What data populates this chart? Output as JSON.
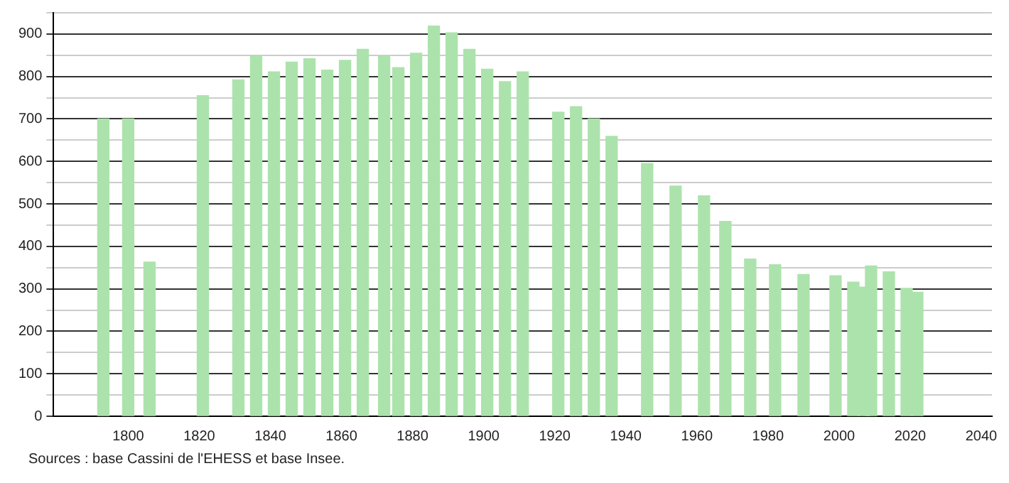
{
  "chart_data": {
    "type": "bar",
    "color": "#ace3ac",
    "x": [
      1793,
      1800,
      1806,
      1821,
      1831,
      1836,
      1841,
      1846,
      1851,
      1856,
      1861,
      1866,
      1872,
      1876,
      1881,
      1886,
      1891,
      1896,
      1901,
      1906,
      1911,
      1921,
      1926,
      1931,
      1936,
      1946,
      1954,
      1962,
      1968,
      1975,
      1982,
      1990,
      1999,
      2004,
      2007,
      2009,
      2014,
      2019,
      2022
    ],
    "values": [
      700,
      700,
      363,
      755,
      792,
      850,
      811,
      834,
      842,
      815,
      838,
      864,
      848,
      821,
      855,
      919,
      903,
      864,
      817,
      788,
      811,
      716,
      729,
      700,
      659,
      595,
      542,
      519,
      459,
      370,
      357,
      334,
      331,
      316,
      304,
      354,
      340,
      301,
      292
    ],
    "xlim": [
      1779,
      2043
    ],
    "xticks": [
      1800,
      1820,
      1840,
      1860,
      1880,
      1900,
      1920,
      1940,
      1960,
      1980,
      2000,
      2020,
      2040
    ],
    "ylim": [
      0,
      950
    ],
    "yticks": [
      0,
      {
        "value": 50,
        "label": null
      },
      100,
      {
        "value": 150,
        "label": null
      },
      200,
      {
        "value": 250,
        "label": null
      },
      300,
      {
        "value": 350,
        "label": null
      },
      400,
      {
        "value": 450,
        "label": null
      },
      500,
      {
        "value": 550,
        "label": null
      },
      600,
      {
        "value": 650,
        "label": null
      },
      700,
      {
        "value": 750,
        "label": null
      },
      800,
      {
        "value": 850,
        "label": null
      },
      900,
      {
        "value": 950,
        "label": null
      }
    ],
    "grid": "y",
    "legend": false,
    "annotations": [
      "Sources : base Cassini de l'EHESS et base Insee."
    ]
  }
}
